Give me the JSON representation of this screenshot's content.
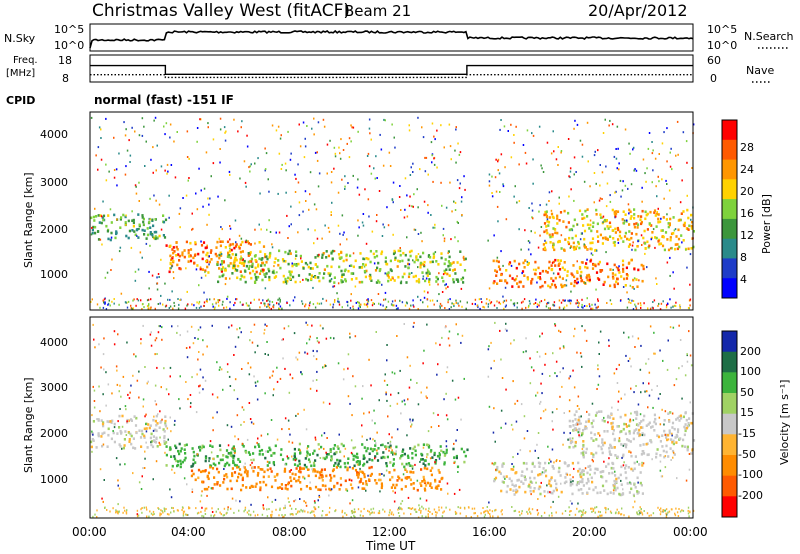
{
  "header": {
    "station": "Christmas Valley West (fitACF)",
    "beam": "Beam 21",
    "date": "20/Apr/2012"
  },
  "top_panels": {
    "nsky_label": "N.Sky",
    "nsky_ticks": [
      "10^5",
      "10^0"
    ],
    "nsearch_label": "N.Search",
    "nsearch_ticks": [
      "10^5",
      "10^0"
    ],
    "freq_label_1": "Freq.",
    "freq_label_2": "[MHz]",
    "freq_ticks": [
      "18",
      "8"
    ],
    "nave_label": "Nave",
    "nave_ticks": [
      "60",
      "0"
    ],
    "cpid_label": "CPID",
    "cpid_text": "normal (fast) -151 IF"
  },
  "power_panel": {
    "ylabel": "Slant Range [km]",
    "yticks": [
      "4000",
      "3000",
      "2000",
      "1000"
    ],
    "colorbar_label": "Power [dB]",
    "colorbar_ticks": [
      "28",
      "24",
      "20",
      "16",
      "12",
      "8",
      "4"
    ],
    "colors": [
      "#ff0000",
      "#ff5a00",
      "#ff9600",
      "#ffd200",
      "#7ed23c",
      "#3c963c",
      "#2a8a8a",
      "#1e3cc8",
      "#0000ff"
    ]
  },
  "velocity_panel": {
    "ylabel": "Slant Range [km]",
    "yticks": [
      "4000",
      "3000",
      "2000",
      "1000"
    ],
    "colorbar_label": "Velocity [m s⁻¹]",
    "colorbar_ticks": [
      "200",
      "100",
      "50",
      "15",
      "-15",
      "-50",
      "-100",
      "-200"
    ],
    "colors": [
      "#1428aa",
      "#1e6e46",
      "#3cb43c",
      "#a0d264",
      "#c8c8c8",
      "#ffb432",
      "#ff8c00",
      "#ff5a00",
      "#ff0000"
    ]
  },
  "xaxis": {
    "labels": [
      "00:00",
      "04:00",
      "08:00",
      "12:00",
      "16:00",
      "20:00",
      "00:00"
    ],
    "title": "Time UT"
  },
  "chart_data": [
    {
      "type": "line",
      "name": "nsky",
      "x": [
        "00:00",
        "03:00",
        "15:00",
        "24:00"
      ],
      "values": [
        5,
        12,
        10,
        5
      ]
    },
    {
      "type": "line",
      "name": "frequency",
      "x_hours": [
        0,
        3,
        15,
        24
      ],
      "freq_mhz": [
        14.5,
        10,
        14.5,
        14.5
      ],
      "nave": [
        14,
        8,
        14,
        14
      ]
    },
    {
      "type": "heatmap",
      "title": "Power",
      "x_range_hours": [
        0,
        24
      ],
      "y_range_km": [
        180,
        4500
      ],
      "zlim": [
        0,
        30
      ],
      "features": [
        {
          "name": "band-a",
          "t": [
            0,
            3
          ],
          "range_km": [
            1700,
            2300
          ],
          "level": 12
        },
        {
          "name": "band-b",
          "t": [
            3,
            7
          ],
          "range_km": [
            1000,
            1700
          ],
          "level": 24
        },
        {
          "name": "band-c",
          "t": [
            5,
            15
          ],
          "range_km": [
            800,
            1500
          ],
          "level": 16
        },
        {
          "name": "band-d",
          "t": [
            16,
            22
          ],
          "range_km": [
            700,
            1300
          ],
          "level": 24
        },
        {
          "name": "band-e",
          "t": [
            18,
            24
          ],
          "range_km": [
            1500,
            2400
          ],
          "level": 20
        }
      ]
    },
    {
      "type": "heatmap",
      "title": "Velocity",
      "x_range_hours": [
        0,
        24
      ],
      "y_range_km": [
        180,
        4500
      ],
      "zlim": [
        -200,
        200
      ],
      "features": [
        {
          "name": "ground-scatter-1",
          "t": [
            0,
            3
          ],
          "range_km": [
            1700,
            2400
          ],
          "level": 0
        },
        {
          "name": "green-band",
          "t": [
            3,
            15
          ],
          "range_km": [
            1300,
            1800
          ],
          "level": 50
        },
        {
          "name": "orange-band",
          "t": [
            4,
            14
          ],
          "range_km": [
            800,
            1300
          ],
          "level": -50
        },
        {
          "name": "ground-scatter-2",
          "t": [
            16,
            22
          ],
          "range_km": [
            700,
            1400
          ],
          "level": 0
        },
        {
          "name": "ground-scatter-3",
          "t": [
            19,
            24
          ],
          "range_km": [
            1500,
            2500
          ],
          "level": 0
        }
      ]
    }
  ]
}
